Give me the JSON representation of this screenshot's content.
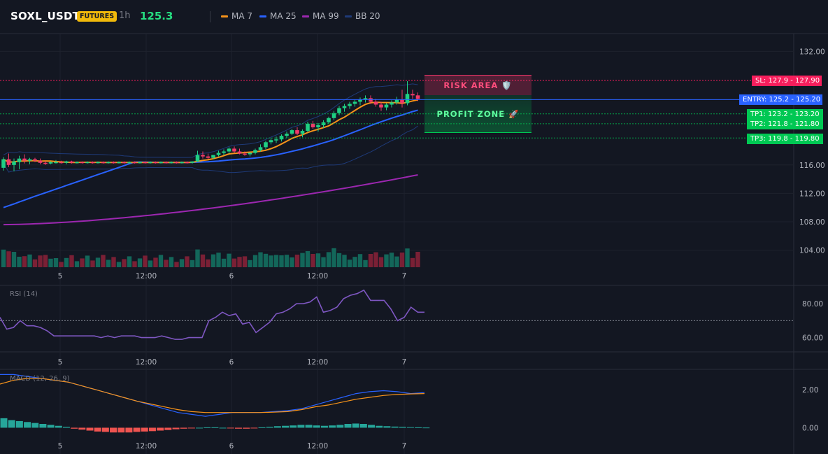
{
  "header": {
    "symbol": "SOXL_USDT",
    "badge": "FUTURES",
    "interval": "1h",
    "price": "125.3",
    "legend": [
      {
        "label": "MA 7",
        "color": "#f7931a"
      },
      {
        "label": "MA 25",
        "color": "#2962ff"
      },
      {
        "label": "MA 99",
        "color": "#9c27b0"
      },
      {
        "label": "BB 20",
        "color": "#1e3a78"
      }
    ]
  },
  "colors": {
    "up": "#1fcf84",
    "down": "#f23a6a",
    "up_vol": "#13675a",
    "down_vol": "#7a2035",
    "bg": "#131722"
  },
  "price_axis": [
    "132.00",
    "116.00",
    "112.00",
    "108.00",
    "104.00"
  ],
  "levels": {
    "sl": {
      "label": "SL: 127.9 - 127.90",
      "value": 127.9,
      "color": "#f71e5c"
    },
    "entry": {
      "label": "ENTRY: 125.2 - 125.20",
      "value": 125.2,
      "color": "#2962ff"
    },
    "tps": [
      {
        "label": "TP1: 123.2 - 123.20",
        "value": 123.2
      },
      {
        "label": "TP2: 121.8 - 121.80",
        "value": 121.8
      },
      {
        "label": "TP3: 119.8 - 119.80",
        "value": 119.8
      }
    ],
    "tp_color": "#00c853"
  },
  "zones": {
    "risk": "RISK AREA 🛡️",
    "profit": "PROFIT ZONE 🚀"
  },
  "time_axis": [
    "5",
    "12:00",
    "6",
    "12:00",
    "7"
  ],
  "rsi": {
    "title": "RSI (14)",
    "axis": [
      "80.00",
      "60.00"
    ],
    "level": 70
  },
  "macd": {
    "title": "MACD (12, 26, 9)",
    "axis": [
      "2.00",
      "0.00"
    ]
  },
  "chart_data": {
    "type": "candlestick",
    "interval": "1h",
    "ylim": [
      101.5,
      134.5
    ],
    "candles_ohlc": [
      [
        115.6,
        117.1,
        115.2,
        116.8
      ],
      [
        116.8,
        117.6,
        115.7,
        116.0
      ],
      [
        116.0,
        116.9,
        115.1,
        116.5
      ],
      [
        116.4,
        117.3,
        115.4,
        116.9
      ],
      [
        116.9,
        117.5,
        116.2,
        116.6
      ],
      [
        116.6,
        117.0,
        116.1,
        116.8
      ],
      [
        116.8,
        117.0,
        116.4,
        116.6
      ],
      [
        116.6,
        116.9,
        116.1,
        116.3
      ],
      [
        116.3,
        116.6,
        116.0,
        116.2
      ],
      [
        116.2,
        116.5,
        116.1,
        116.4
      ],
      [
        116.4,
        116.7,
        116.2,
        116.4
      ],
      [
        116.4,
        116.6,
        116.2,
        116.3
      ],
      [
        116.3,
        116.6,
        116.1,
        116.5
      ],
      [
        116.5,
        116.6,
        116.2,
        116.3
      ],
      [
        116.3,
        116.5,
        116.2,
        116.4
      ],
      [
        116.4,
        116.5,
        116.2,
        116.3
      ],
      [
        116.3,
        116.5,
        116.2,
        116.4
      ],
      [
        116.4,
        116.5,
        116.2,
        116.3
      ],
      [
        116.3,
        116.5,
        116.2,
        116.4
      ],
      [
        116.4,
        116.5,
        116.2,
        116.3
      ],
      [
        116.3,
        116.5,
        116.2,
        116.4
      ],
      [
        116.4,
        116.5,
        116.2,
        116.3
      ],
      [
        116.3,
        116.5,
        116.2,
        116.4
      ],
      [
        116.4,
        116.5,
        116.2,
        116.3
      ],
      [
        116.3,
        116.5,
        116.2,
        116.4
      ],
      [
        116.4,
        116.5,
        116.2,
        116.3
      ],
      [
        116.3,
        116.5,
        116.2,
        116.4
      ],
      [
        116.4,
        116.5,
        116.2,
        116.3
      ],
      [
        116.3,
        116.5,
        116.2,
        116.4
      ],
      [
        116.4,
        116.5,
        116.2,
        116.3
      ],
      [
        116.3,
        116.5,
        116.2,
        116.4
      ],
      [
        116.4,
        116.5,
        116.2,
        116.3
      ],
      [
        116.3,
        116.5,
        116.2,
        116.4
      ],
      [
        116.4,
        116.5,
        116.2,
        116.3
      ],
      [
        116.3,
        116.5,
        116.2,
        116.4
      ],
      [
        116.4,
        116.5,
        116.2,
        116.3
      ],
      [
        116.3,
        116.5,
        116.2,
        116.5
      ],
      [
        116.5,
        118.0,
        116.4,
        117.4
      ],
      [
        117.4,
        117.9,
        116.9,
        117.2
      ],
      [
        117.2,
        117.6,
        116.8,
        117.0
      ],
      [
        117.0,
        117.4,
        116.8,
        117.4
      ],
      [
        117.4,
        118.0,
        117.2,
        117.7
      ],
      [
        117.7,
        118.2,
        117.4,
        117.9
      ],
      [
        117.9,
        118.5,
        117.6,
        118.3
      ],
      [
        118.3,
        118.6,
        117.7,
        117.9
      ],
      [
        117.9,
        118.3,
        117.5,
        117.6
      ],
      [
        117.6,
        117.9,
        117.3,
        117.5
      ],
      [
        117.5,
        117.8,
        117.2,
        117.7
      ],
      [
        117.7,
        118.3,
        117.5,
        118.1
      ],
      [
        118.1,
        118.9,
        117.9,
        118.5
      ],
      [
        118.5,
        119.4,
        118.2,
        119.2
      ],
      [
        119.2,
        119.8,
        118.9,
        119.5
      ],
      [
        119.5,
        120.0,
        119.1,
        119.6
      ],
      [
        119.6,
        120.3,
        119.3,
        120.1
      ],
      [
        120.1,
        120.7,
        119.8,
        120.4
      ],
      [
        120.4,
        121.1,
        120.2,
        120.9
      ],
      [
        120.9,
        121.3,
        120.2,
        120.4
      ],
      [
        120.4,
        121.0,
        119.9,
        120.8
      ],
      [
        120.8,
        122.1,
        120.6,
        121.8
      ],
      [
        121.8,
        122.2,
        121.1,
        121.3
      ],
      [
        121.3,
        121.9,
        120.7,
        121.6
      ],
      [
        121.6,
        122.3,
        121.2,
        122.0
      ],
      [
        122.0,
        122.8,
        121.8,
        122.6
      ],
      [
        122.6,
        123.6,
        122.3,
        123.3
      ],
      [
        123.3,
        124.3,
        123.0,
        124.0
      ],
      [
        124.0,
        124.6,
        123.5,
        124.3
      ],
      [
        124.3,
        124.9,
        123.9,
        124.6
      ],
      [
        124.6,
        125.2,
        124.2,
        124.9
      ],
      [
        124.9,
        125.5,
        124.4,
        125.2
      ],
      [
        125.2,
        125.8,
        124.8,
        125.4
      ],
      [
        125.4,
        125.8,
        124.6,
        124.9
      ],
      [
        124.9,
        125.3,
        124.2,
        124.5
      ],
      [
        124.5,
        124.9,
        123.6,
        124.1
      ],
      [
        124.1,
        124.7,
        123.7,
        124.5
      ],
      [
        124.5,
        125.1,
        124.1,
        124.8
      ],
      [
        124.8,
        125.6,
        124.5,
        125.2
      ],
      [
        125.2,
        126.6,
        124.1,
        124.7
      ],
      [
        124.7,
        127.8,
        124.4,
        126.0
      ],
      [
        126.0,
        126.6,
        125.3,
        125.8
      ],
      [
        125.8,
        126.2,
        125.0,
        125.3
      ]
    ],
    "moving_averages": {
      "MA 7": "close, 7-period",
      "MA 25": "close, 25-period",
      "MA 99": "close, 99-period",
      "BB 20": "20-period Bollinger Bands"
    },
    "volume_note": "volume bars colored by candle direction",
    "rsi_series": [
      72,
      65,
      66,
      70,
      67,
      67,
      66,
      64,
      61,
      61,
      61,
      61,
      61,
      61,
      61,
      60,
      61,
      60,
      61,
      61,
      61,
      60,
      60,
      60,
      61,
      60,
      59,
      59,
      60,
      60,
      60,
      70,
      72,
      75,
      73,
      74,
      68,
      69,
      63,
      66,
      69,
      74,
      75,
      77,
      80,
      80,
      81,
      84,
      75,
      76,
      78,
      83,
      85,
      86,
      88,
      82,
      82,
      82,
      77,
      70,
      72,
      78,
      75,
      75
    ],
    "macd_line": [
      2.8,
      2.8,
      2.7,
      2.6,
      2.5,
      2.4,
      2.2,
      2.0,
      1.8,
      1.6,
      1.4,
      1.2,
      1.0,
      0.8,
      0.7,
      0.6,
      0.7,
      0.8,
      0.8,
      0.8,
      0.85,
      0.9,
      1.0,
      1.2,
      1.4,
      1.6,
      1.8,
      1.9,
      1.95,
      1.9,
      1.8,
      1.85
    ],
    "signal_line": [
      2.3,
      2.5,
      2.6,
      2.6,
      2.5,
      2.4,
      2.2,
      2.0,
      1.8,
      1.6,
      1.4,
      1.25,
      1.1,
      0.95,
      0.85,
      0.8,
      0.8,
      0.8,
      0.8,
      0.8,
      0.82,
      0.85,
      0.95,
      1.1,
      1.2,
      1.35,
      1.5,
      1.6,
      1.7,
      1.75,
      1.78,
      1.8
    ],
    "histogram": [
      0.5,
      0.4,
      0.35,
      0.3,
      0.25,
      0.2,
      0.15,
      0.1,
      0.05,
      -0.05,
      -0.1,
      -0.15,
      -0.2,
      -0.22,
      -0.25,
      -0.25,
      -0.25,
      -0.22,
      -0.2,
      -0.18,
      -0.15,
      -0.12,
      -0.08,
      -0.05,
      -0.02,
      0.0,
      0.02,
      0.02,
      0.0,
      -0.02,
      -0.05,
      -0.05,
      -0.02,
      0.02,
      0.05,
      0.08,
      0.1,
      0.12,
      0.15,
      0.15,
      0.12,
      0.1,
      0.12,
      0.15,
      0.2,
      0.22,
      0.2,
      0.15,
      0.1,
      0.08,
      0.06,
      0.05,
      0.03,
      0.02,
      0.01
    ]
  }
}
